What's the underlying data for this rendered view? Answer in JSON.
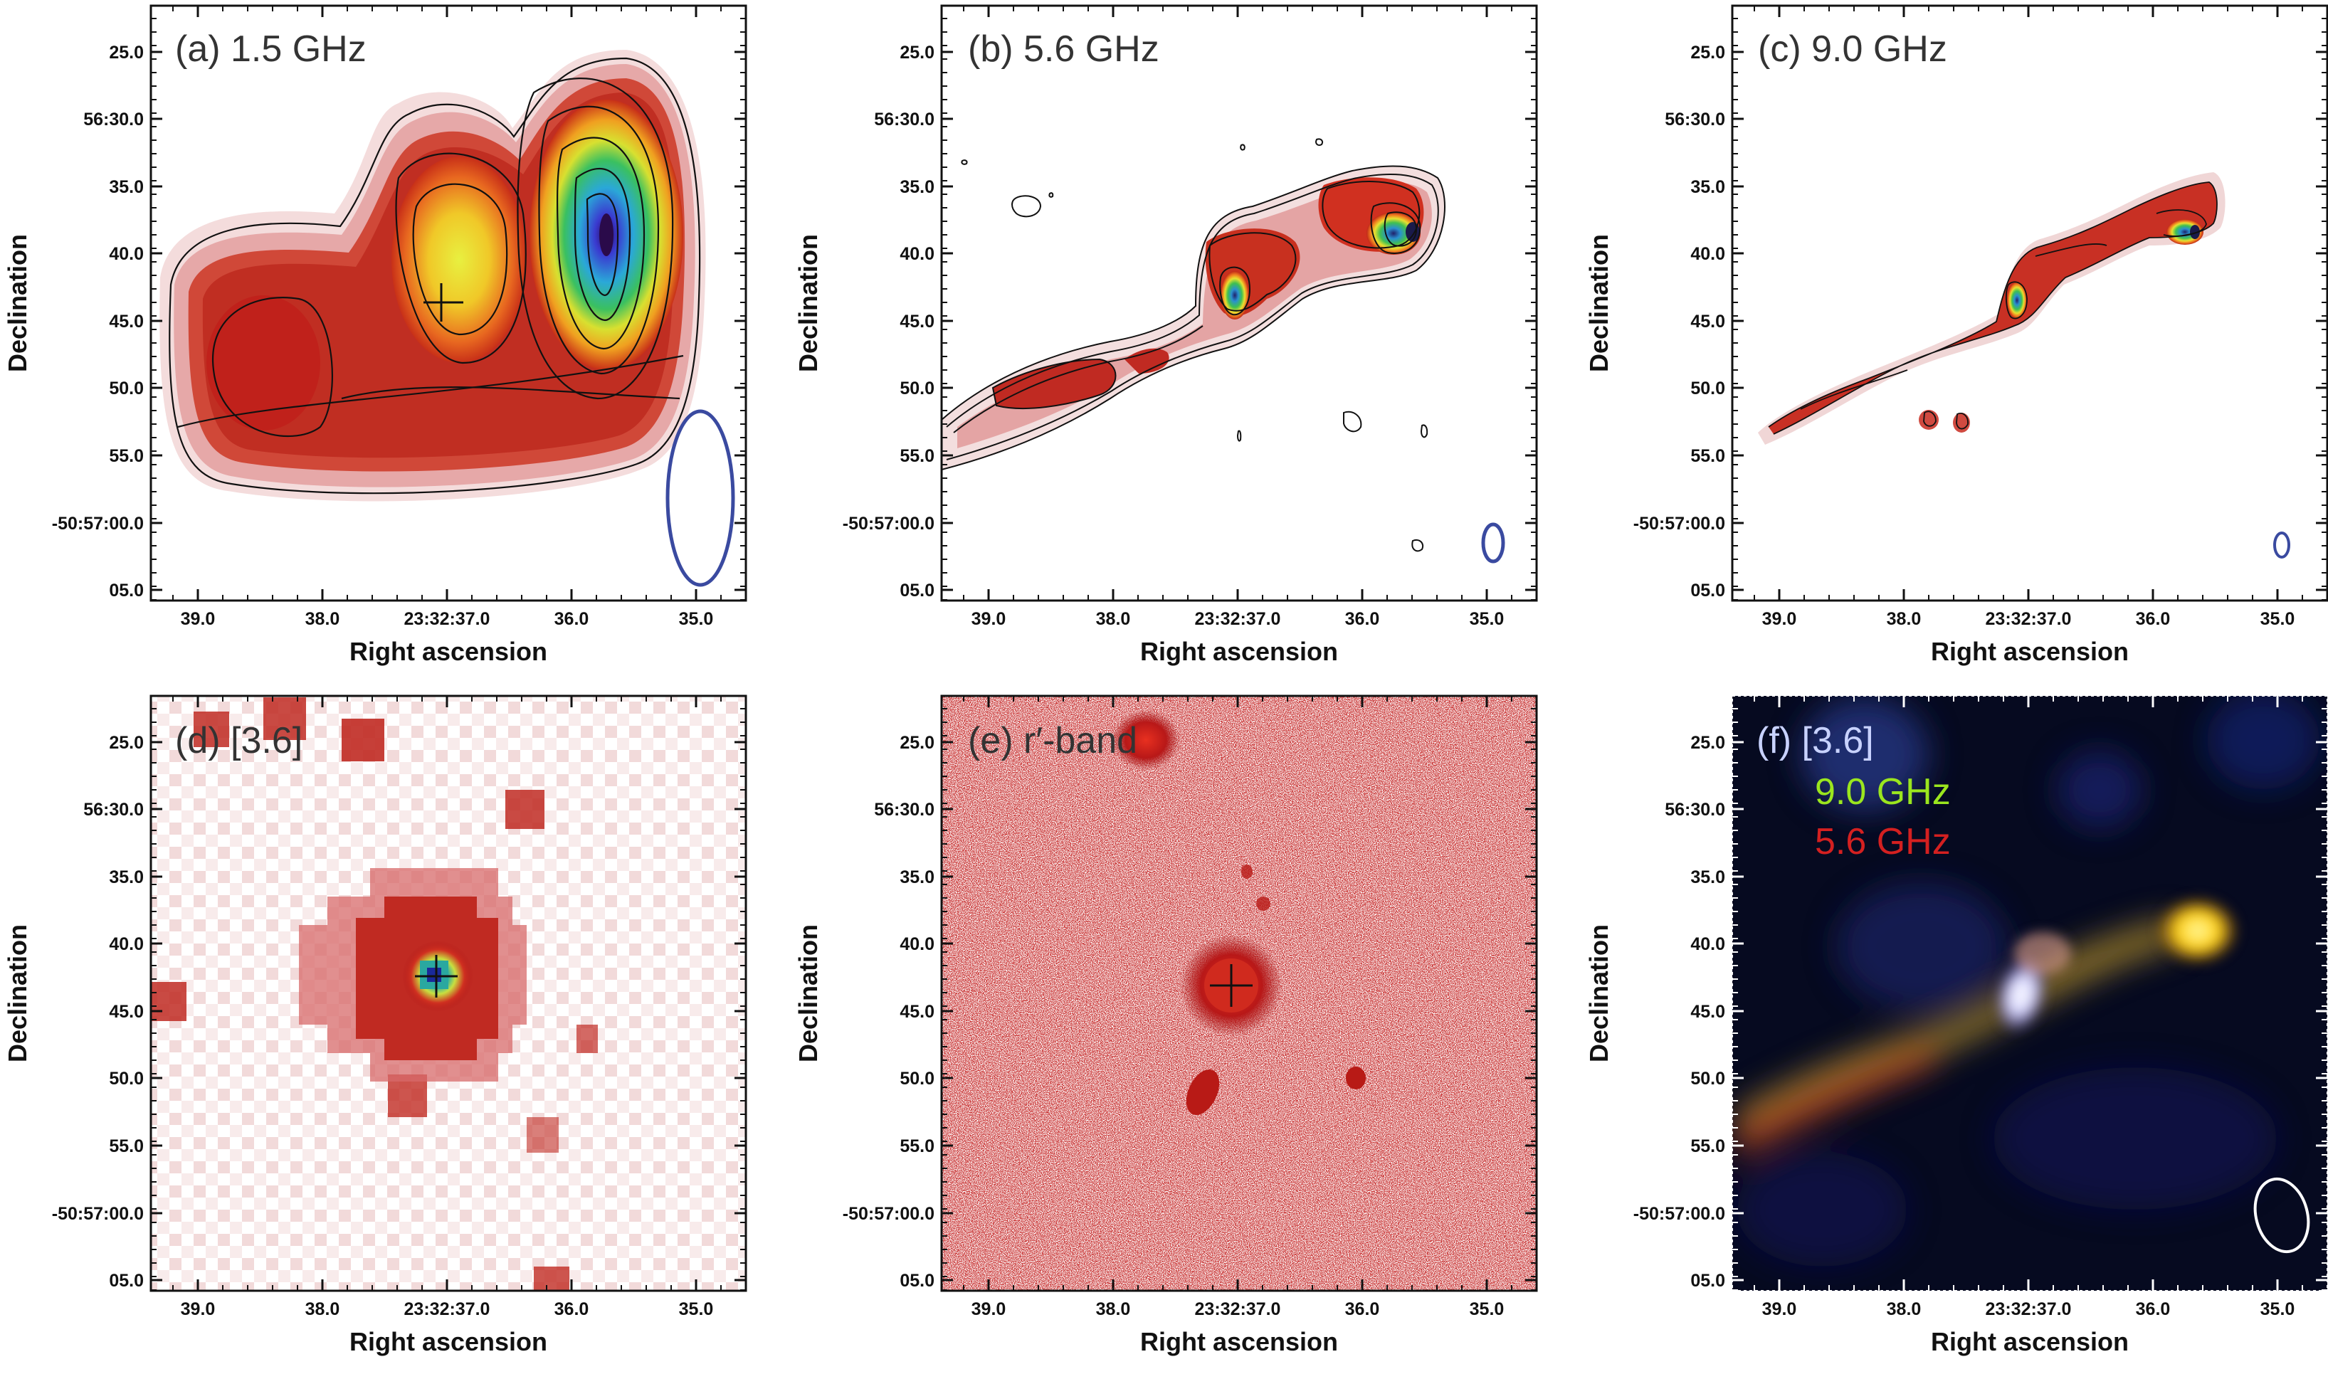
{
  "axes": {
    "xlabel": "Right ascension",
    "ylabel": "Declination",
    "x_ticks": [
      "39.0",
      "38.0",
      "23:32:37.0",
      "36.0",
      "35.0"
    ],
    "y_ticks": [
      "25.0",
      "56:30.0",
      "35.0",
      "40.0",
      "45.0",
      "50.0",
      "55.0",
      "-50:57:00.0",
      "05.0"
    ]
  },
  "panels": [
    {
      "id": "a",
      "label": "(a) 1.5 GHz"
    },
    {
      "id": "b",
      "label": "(b) 5.6 GHz"
    },
    {
      "id": "c",
      "label": "(c) 9.0 GHz"
    },
    {
      "id": "d",
      "label": "(d) [3.6]"
    },
    {
      "id": "e",
      "label": "(e) r′-band"
    },
    {
      "id": "f",
      "label": "(f) [3.6]",
      "legend": [
        {
          "text": "9.0 GHz",
          "color": "#9be61e"
        },
        {
          "text": "5.6 GHz",
          "color": "#d42020"
        }
      ],
      "label_color": "#c8d2ff"
    }
  ],
  "colors": {
    "beam": "#3a4aa0",
    "beam_f": "#ffffff",
    "contour": "#111111"
  }
}
